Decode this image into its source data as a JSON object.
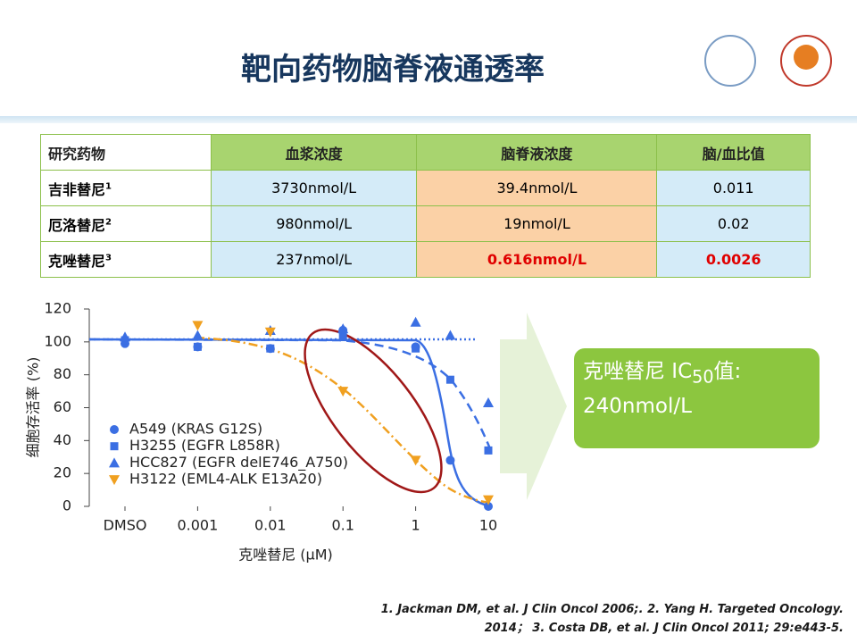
{
  "header": {
    "title": "靶向药物脑脊液通透率"
  },
  "table": {
    "columns": [
      "研究药物",
      "血浆浓度",
      "脑脊液浓度",
      "脑/血比值"
    ],
    "rows": [
      [
        "吉非替尼",
        "3730nmol/L",
        "39.4nmol/L",
        "0.011"
      ],
      [
        "厄洛替尼",
        "980nmol/L",
        "19nmol/L",
        "0.02"
      ],
      [
        "克唑替尼",
        "237nmol/L",
        "0.616nmol/L",
        "0.0026"
      ]
    ],
    "refs": [
      "1",
      "2",
      "3"
    ]
  },
  "chart_data": {
    "type": "scatter",
    "x_label": "克唑替尼 (μM)",
    "y_label": "细胞存活率 (%)",
    "x": [
      0.0001,
      0.001,
      0.01,
      0.1,
      1,
      3,
      10
    ],
    "log_x": true,
    "xlim": [
      0.0001,
      10
    ],
    "xticks": [
      {
        "value": 0.0001,
        "label": "DMSO"
      },
      0.001,
      0.01,
      0.1,
      1,
      10
    ],
    "ylim": [
      0,
      120
    ],
    "yticks": [
      0,
      20,
      40,
      60,
      80,
      100,
      120
    ],
    "series": [
      {
        "name": "A549 (KRAS G12S)",
        "color": "#3b6fe3",
        "marker": "circle",
        "values": [
          99,
          97,
          96,
          107,
          97,
          28,
          0
        ]
      },
      {
        "name": "H3255 (EGFR L858R)",
        "color": "#3b6fe3",
        "marker": "square",
        "values": [
          101,
          97,
          96,
          103,
          96,
          77,
          34
        ]
      },
      {
        "name": "HCC827 (EGFR delE746_A750)",
        "color": "#3b6fe3",
        "marker": "triangle-up",
        "values": [
          103,
          104,
          107,
          108,
          112,
          104,
          63
        ]
      },
      {
        "name": "H3122 (EML4-ALK E13A20)",
        "color": "#f0a020",
        "marker": "triangle-down",
        "values": [
          null,
          110,
          106,
          70,
          28,
          null,
          4
        ]
      }
    ]
  },
  "callout": {
    "text": "克唑替尼 IC",
    "sub": "50",
    "after": "值:",
    "value": "240nmol/L"
  },
  "footnote": [
    "1.  Jackman DM, et al. J Clin Oncol 2006;. 2. Yang H. Targeted Oncology.",
    "2014； 3. Costa DB, et al. J Clin Oncol 2011; 29:e443-5."
  ]
}
